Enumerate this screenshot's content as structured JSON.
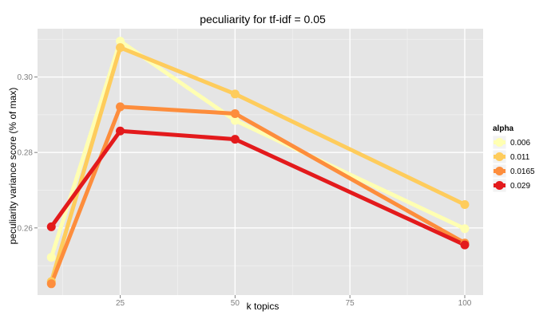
{
  "chart_data": {
    "type": "line",
    "title": "peculiarity for tf-idf = 0.05",
    "xlabel": "k topics",
    "ylabel": "peculiarity variance score (% of max)",
    "x": [
      10,
      25,
      50,
      100
    ],
    "xlim": [
      7,
      104
    ],
    "ylim": [
      0.2422,
      0.3128
    ],
    "xticks": [
      25,
      50,
      75,
      100
    ],
    "xtick_labels": [
      "25",
      "50",
      "75",
      "100"
    ],
    "yticks": [
      0.26,
      0.28,
      0.3
    ],
    "ytick_labels": [
      "0.26",
      "0.28",
      "0.30"
    ],
    "grid": true,
    "legend": {
      "title": "alpha",
      "position": "right"
    },
    "series": [
      {
        "name": "0.006",
        "color": "#FFFFB2",
        "values": [
          0.2522,
          0.3095,
          0.2885,
          0.2598
        ]
      },
      {
        "name": "0.011",
        "color": "#FECC5C",
        "values": [
          0.2458,
          0.3078,
          0.2955,
          0.2662
        ]
      },
      {
        "name": "0.0165",
        "color": "#FD8D3C",
        "values": [
          0.2452,
          0.2921,
          0.2903,
          0.256
        ]
      },
      {
        "name": "0.029",
        "color": "#E31A1C",
        "values": [
          0.2603,
          0.2857,
          0.2835,
          0.2555
        ]
      }
    ]
  }
}
